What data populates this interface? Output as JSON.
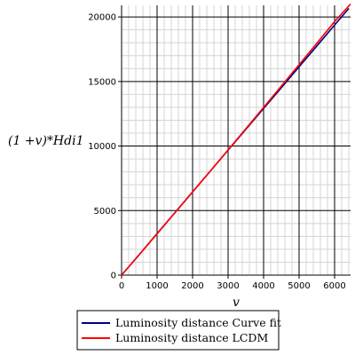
{
  "chart_data": {
    "type": "line",
    "xlabel": "v",
    "ylabel": "(1 +v)*Hdi1",
    "xlim": [
      0,
      6450
    ],
    "ylim": [
      0,
      20900
    ],
    "x_ticks": [
      0,
      1000,
      2000,
      3000,
      4000,
      5000,
      6000
    ],
    "y_ticks": [
      0,
      5000,
      10000,
      15000,
      20000
    ],
    "grid": true,
    "legend_position": "bottom",
    "series": [
      {
        "name": "Luminosity distance Curve fit",
        "color": "#000080",
        "x": [
          0,
          500,
          1000,
          1500,
          2000,
          2500,
          3000,
          3500,
          4000,
          4500,
          5000,
          5500,
          6000,
          6400
        ],
        "y": [
          0,
          1600,
          3220,
          4830,
          6450,
          8060,
          9680,
          11290,
          12910,
          14520,
          16140,
          17750,
          19370,
          20660
        ]
      },
      {
        "name": "Luminosity distance LCDM",
        "color": "#ff0000",
        "x": [
          0,
          500,
          1000,
          1500,
          2000,
          2500,
          3000,
          3500,
          4000,
          4500,
          5000,
          5500,
          6000,
          6450
        ],
        "y": [
          0,
          1590,
          3200,
          4820,
          6440,
          8060,
          9700,
          11340,
          12990,
          14640,
          16300,
          17960,
          19640,
          21000
        ]
      }
    ]
  }
}
